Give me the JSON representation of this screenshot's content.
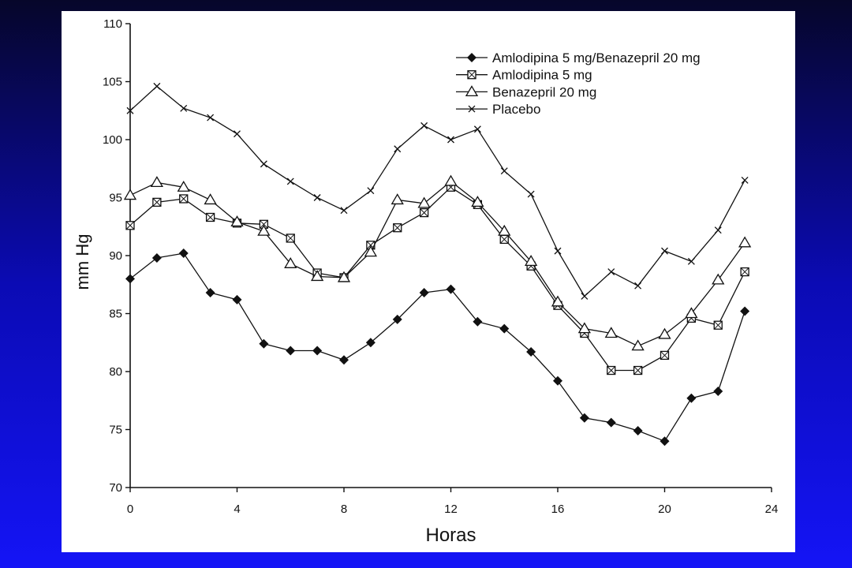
{
  "colors": {
    "background_top": "#06062a",
    "background_mid": "#0b0bb4",
    "background_bottom": "#1414f6",
    "panel": "#ffffff",
    "ink": "#111111"
  },
  "chart_data": {
    "type": "line",
    "xlabel": "Horas",
    "ylabel": "mm Hg",
    "xlim": [
      0,
      24
    ],
    "ylim": [
      70,
      110
    ],
    "xticks": [
      0,
      4,
      8,
      12,
      16,
      20,
      24
    ],
    "yticks": [
      70,
      75,
      80,
      85,
      90,
      95,
      100,
      105,
      110
    ],
    "grid": false,
    "legend_position": "top-right",
    "x": [
      0,
      1,
      2,
      3,
      4,
      5,
      6,
      7,
      8,
      9,
      10,
      11,
      12,
      13,
      14,
      15,
      16,
      17,
      18,
      19,
      20,
      21,
      22,
      23
    ],
    "series": [
      {
        "name": "Amlodipina 5 mg/Benazepril 20 mg",
        "marker": "filled-diamond",
        "values": [
          88.0,
          89.8,
          90.2,
          86.8,
          86.2,
          82.4,
          81.8,
          81.8,
          81.0,
          82.5,
          84.5,
          86.8,
          87.1,
          84.3,
          83.7,
          81.7,
          79.2,
          76.0,
          75.6,
          74.9,
          74.0,
          77.7,
          78.3,
          85.2
        ]
      },
      {
        "name": "Amlodipina 5 mg",
        "marker": "crossed-square",
        "values": [
          92.6,
          94.6,
          94.9,
          93.3,
          92.8,
          92.7,
          91.5,
          88.5,
          88.1,
          90.9,
          92.4,
          93.7,
          95.9,
          94.4,
          91.4,
          89.1,
          85.7,
          83.3,
          80.1,
          80.1,
          81.4,
          84.6,
          84.0,
          88.6
        ]
      },
      {
        "name": "Benazepril 20 mg",
        "marker": "open-triangle",
        "values": [
          95.2,
          96.3,
          95.9,
          94.8,
          92.9,
          92.1,
          89.3,
          88.2,
          88.1,
          90.3,
          94.8,
          94.5,
          96.4,
          94.6,
          92.1,
          89.5,
          86.0,
          83.7,
          83.3,
          82.2,
          83.2,
          85.0,
          87.9,
          91.1
        ]
      },
      {
        "name": "Placebo",
        "marker": "x-cross",
        "values": [
          102.5,
          104.6,
          102.7,
          101.9,
          100.5,
          97.9,
          96.4,
          95.0,
          93.9,
          95.6,
          99.2,
          101.2,
          100.0,
          100.9,
          97.3,
          95.3,
          90.4,
          86.5,
          88.6,
          87.4,
          90.4,
          89.5,
          92.2,
          96.5
        ]
      }
    ]
  }
}
